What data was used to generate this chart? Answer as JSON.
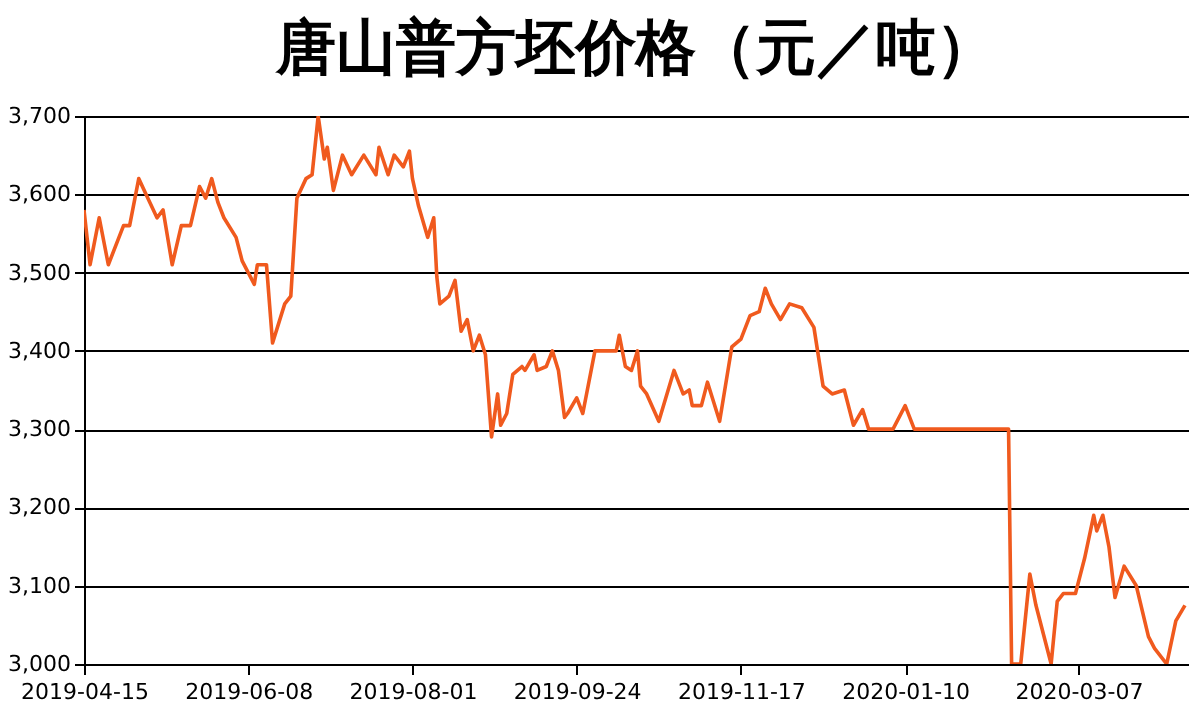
{
  "chart_data": {
    "type": "line",
    "title": "唐山普方坯价格（元／吨）",
    "x": [
      "2019-04-15",
      "2019-04-17",
      "2019-04-20",
      "2019-04-23",
      "2019-04-28",
      "2019-04-30",
      "2019-05-03",
      "2019-05-06",
      "2019-05-09",
      "2019-05-11",
      "2019-05-14",
      "2019-05-17",
      "2019-05-20",
      "2019-05-23",
      "2019-05-25",
      "2019-05-27",
      "2019-05-29",
      "2019-05-31",
      "2019-06-04",
      "2019-06-06",
      "2019-06-08",
      "2019-06-10",
      "2019-06-11",
      "2019-06-14",
      "2019-06-16",
      "2019-06-20",
      "2019-06-22",
      "2019-06-24",
      "2019-06-27",
      "2019-06-29",
      "2019-07-01",
      "2019-07-03",
      "2019-07-04",
      "2019-07-06",
      "2019-07-09",
      "2019-07-12",
      "2019-07-16",
      "2019-07-20",
      "2019-07-21",
      "2019-07-24",
      "2019-07-26",
      "2019-07-29",
      "2019-07-31",
      "2019-08-01",
      "2019-08-03",
      "2019-08-06",
      "2019-08-08",
      "2019-08-09",
      "2019-08-10",
      "2019-08-13",
      "2019-08-15",
      "2019-08-17",
      "2019-08-19",
      "2019-08-21",
      "2019-08-23",
      "2019-08-25",
      "2019-08-27",
      "2019-08-29",
      "2019-08-30",
      "2019-09-01",
      "2019-09-03",
      "2019-09-06",
      "2019-09-07",
      "2019-09-10",
      "2019-09-11",
      "2019-09-14",
      "2019-09-16",
      "2019-09-18",
      "2019-09-20",
      "2019-09-21",
      "2019-09-24",
      "2019-09-26",
      "2019-09-30",
      "2019-10-07",
      "2019-10-08",
      "2019-10-10",
      "2019-10-12",
      "2019-10-14",
      "2019-10-15",
      "2019-10-17",
      "2019-10-21",
      "2019-10-26",
      "2019-10-29",
      "2019-10-31",
      "2019-11-01",
      "2019-11-04",
      "2019-11-06",
      "2019-11-10",
      "2019-11-14",
      "2019-11-17",
      "2019-11-20",
      "2019-11-23",
      "2019-11-25",
      "2019-11-27",
      "2019-11-30",
      "2019-12-03",
      "2019-12-07",
      "2019-12-11",
      "2019-12-14",
      "2019-12-17",
      "2019-12-21",
      "2019-12-24",
      "2019-12-27",
      "2019-12-29",
      "2020-01-06",
      "2020-01-10",
      "2020-01-13",
      "2020-02-13",
      "2020-02-14",
      "2020-02-17",
      "2020-02-20",
      "2020-02-22",
      "2020-02-27",
      "2020-02-29",
      "2020-03-02",
      "2020-03-06",
      "2020-03-09",
      "2020-03-12",
      "2020-03-13",
      "2020-03-15",
      "2020-03-17",
      "2020-03-19",
      "2020-03-22",
      "2020-03-26",
      "2020-03-30",
      "2020-04-01",
      "2020-04-05",
      "2020-04-08",
      "2020-04-11"
    ],
    "series": [
      {
        "color": "#f05a1e",
        "values": [
          3580,
          3510,
          3570,
          3510,
          3560,
          3560,
          3620,
          3595,
          3570,
          3580,
          3510,
          3560,
          3560,
          3610,
          3595,
          3620,
          3590,
          3570,
          3545,
          3515,
          3500,
          3485,
          3510,
          3510,
          3410,
          3460,
          3470,
          3595,
          3620,
          3625,
          3700,
          3645,
          3660,
          3605,
          3650,
          3625,
          3650,
          3625,
          3660,
          3625,
          3650,
          3635,
          3655,
          3620,
          3585,
          3545,
          3570,
          3495,
          3460,
          3470,
          3490,
          3425,
          3440,
          3400,
          3420,
          3395,
          3290,
          3345,
          3305,
          3320,
          3370,
          3380,
          3375,
          3395,
          3375,
          3380,
          3400,
          3375,
          3315,
          3320,
          3340,
          3320,
          3400,
          3400,
          3420,
          3380,
          3375,
          3400,
          3355,
          3345,
          3310,
          3375,
          3345,
          3350,
          3330,
          3330,
          3360,
          3310,
          3405,
          3415,
          3445,
          3450,
          3480,
          3460,
          3440,
          3460,
          3455,
          3430,
          3355,
          3345,
          3350,
          3305,
          3325,
          3300,
          3300,
          3330,
          3300,
          3300,
          3000,
          3000,
          3115,
          3075,
          3000,
          3080,
          3090,
          3090,
          3135,
          3190,
          3170,
          3190,
          3150,
          3085,
          3125,
          3100,
          3035,
          3020,
          3000,
          3055,
          3075
        ]
      }
    ],
    "xlim": [
      "2019-04-15",
      "2020-04-12"
    ],
    "xticks": [
      "2019-04-15",
      "2019-06-08",
      "2019-08-01",
      "2019-09-24",
      "2019-11-17",
      "2020-01-10",
      "2020-03-07"
    ],
    "ylim": [
      3000,
      3700
    ],
    "yticks": [
      {
        "value": 3000,
        "label": "3,000"
      },
      {
        "value": 3100,
        "label": "3,100"
      },
      {
        "value": 3200,
        "label": "3,200"
      },
      {
        "value": 3300,
        "label": "3,300"
      },
      {
        "value": 3400,
        "label": "3,400"
      },
      {
        "value": 3500,
        "label": "3,500"
      },
      {
        "value": 3600,
        "label": "3,600"
      },
      {
        "value": 3700,
        "label": "3,700"
      }
    ],
    "grid": "y",
    "marker": "none",
    "line_style": "solid"
  }
}
